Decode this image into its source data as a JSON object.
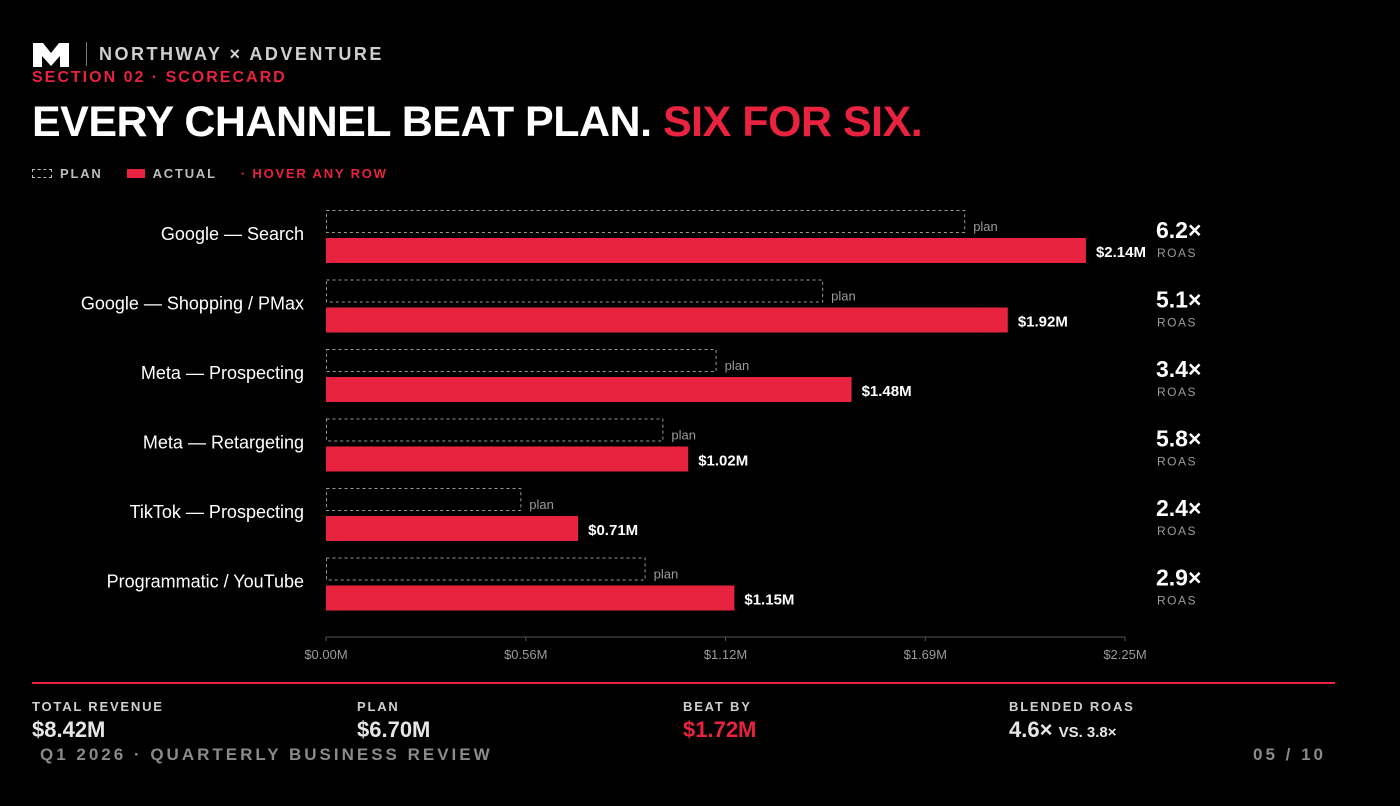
{
  "brand": {
    "name": "NORTHWAY × ADVENTURE",
    "logo_icon": "m-monogram-logo"
  },
  "section": "SECTION 02 · SCORECARD",
  "headline": {
    "main": "EVERY CHANNEL BEAT PLAN.",
    "accent": "SIX FOR SIX."
  },
  "legend": {
    "plan": "PLAN",
    "actual": "ACTUAL",
    "hint": "· HOVER ANY ROW"
  },
  "colors": {
    "accent": "#e8233f",
    "background": "#000000"
  },
  "chart_data": {
    "type": "bar",
    "orientation": "horizontal",
    "categories": [
      "Google — Search",
      "Google — Shopping / PMax",
      "Meta — Prospecting",
      "Meta — Retargeting",
      "TikTok — Prospecting",
      "Programmatic / YouTube"
    ],
    "series": [
      {
        "name": "PLAN",
        "values": [
          1.8,
          1.4,
          1.1,
          0.95,
          0.55,
          0.9
        ]
      },
      {
        "name": "ACTUAL",
        "values": [
          2.14,
          1.92,
          1.48,
          1.02,
          0.71,
          1.15
        ]
      }
    ],
    "value_labels": [
      "$2.14M",
      "$1.92M",
      "$1.48M",
      "$1.02M",
      "$0.71M",
      "$1.15M"
    ],
    "plan_label": "plan",
    "roas": [
      "6.2×",
      "5.1×",
      "3.4×",
      "5.8×",
      "2.4×",
      "2.9×"
    ],
    "roas_label": "ROAS",
    "xlim": [
      0,
      2.25
    ],
    "ticks": [
      0,
      0.5625,
      1.125,
      1.6875,
      2.25
    ],
    "tick_labels": [
      "$0.00M",
      "$0.56M",
      "$1.12M",
      "$1.69M",
      "$2.25M"
    ]
  },
  "kpis": [
    {
      "label": "TOTAL REVENUE",
      "value": "$8.42M"
    },
    {
      "label": "PLAN",
      "value": "$6.70M"
    },
    {
      "label": "BEAT BY",
      "value": "$1.72M"
    },
    {
      "label": "BLENDED ROAS",
      "value": "4.6×",
      "sub": "VS. 3.8×"
    }
  ],
  "footer": {
    "left": "Q1 2026 · QUARTERLY BUSINESS REVIEW",
    "right": "05 / 10"
  }
}
